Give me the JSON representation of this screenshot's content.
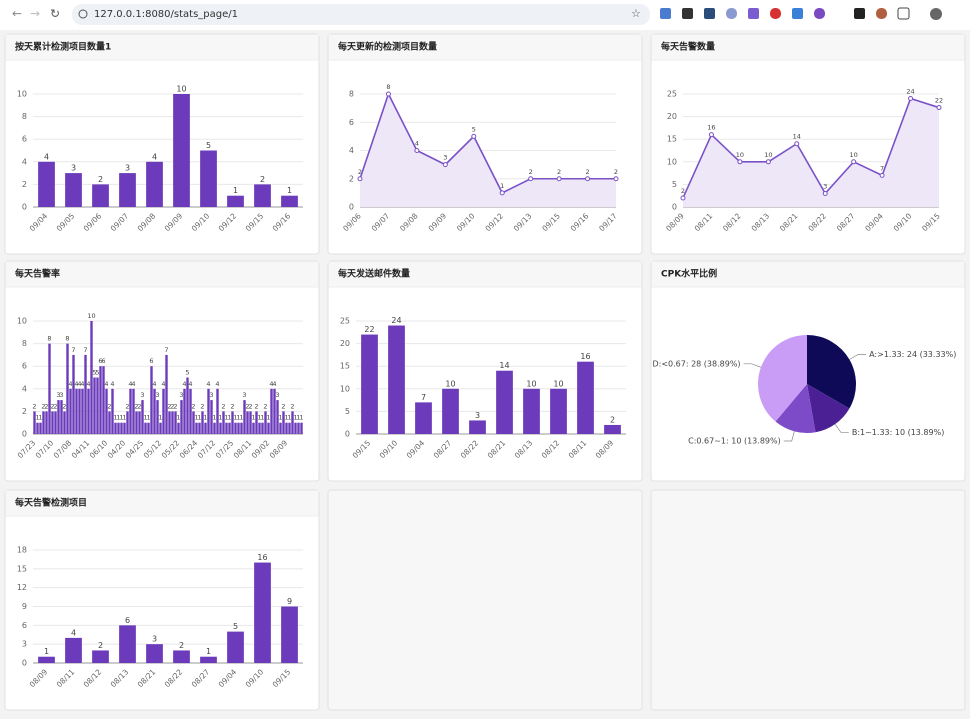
{
  "browser": {
    "url": "127.0.0.1:8080/stats_page/1"
  },
  "chart_data": [
    {
      "type": "bar",
      "title": "按天累计检测项目数量1",
      "color": "#6b3bbb",
      "categories": [
        "09/04",
        "09/05",
        "09/06",
        "09/07",
        "09/08",
        "09/09",
        "09/10",
        "09/12",
        "09/15",
        "09/16"
      ],
      "values": [
        4,
        3,
        2,
        3,
        4,
        10,
        5,
        1,
        2,
        1
      ],
      "ylim": [
        0,
        10
      ],
      "yticks": [
        0,
        2,
        4,
        6,
        8,
        10
      ],
      "grid": true
    },
    {
      "type": "line",
      "title": "每天更新的检测项目数量",
      "color": "#7a52c6",
      "area_color": "#ede7f8",
      "categories": [
        "09/06",
        "09/07",
        "09/08",
        "09/09",
        "09/10",
        "09/12",
        "09/13",
        "09/15",
        "09/16",
        "09/17"
      ],
      "values": [
        2,
        8,
        4,
        3,
        5,
        1,
        2,
        2,
        2,
        2
      ],
      "ylim": [
        0,
        8
      ],
      "yticks": [
        0,
        2,
        4,
        6,
        8
      ],
      "grid": true
    },
    {
      "type": "line",
      "title": "每天告警数量",
      "color": "#7a52c6",
      "area_color": "#ede7f8",
      "categories": [
        "08/09",
        "08/11",
        "08/12",
        "08/13",
        "08/21",
        "08/22",
        "08/27",
        "09/04",
        "09/10",
        "09/15"
      ],
      "values": [
        2,
        16,
        10,
        10,
        14,
        3,
        10,
        7,
        24,
        22
      ],
      "ylim": [
        0,
        25
      ],
      "yticks": [
        0,
        5,
        10,
        15,
        20,
        25
      ],
      "grid": true
    },
    {
      "type": "bar",
      "title": "每天告警率",
      "color": "#6b3bbb",
      "small": true,
      "categories": [
        "07/23",
        null,
        null,
        null,
        null,
        null,
        "07/10",
        null,
        null,
        null,
        null,
        null,
        "07/08",
        null,
        null,
        null,
        null,
        null,
        "04/11",
        null,
        null,
        null,
        null,
        null,
        "06/10",
        null,
        null,
        null,
        null,
        null,
        "04/20",
        null,
        null,
        null,
        null,
        null,
        "04/25",
        null,
        null,
        null,
        null,
        null,
        "05/12",
        null,
        null,
        null,
        null,
        null,
        "05/22",
        null,
        null,
        null,
        null,
        null,
        "06/24",
        null,
        null,
        null,
        null,
        null,
        "07/12",
        null,
        null,
        null,
        null,
        null,
        "07/25",
        null,
        null,
        null,
        null,
        null,
        "08/11",
        null,
        null,
        null,
        null,
        null,
        "09/02",
        null,
        null,
        null,
        null,
        null,
        "08/09",
        null,
        null,
        null,
        null,
        null
      ],
      "values": [
        2,
        1,
        1,
        2,
        2,
        8,
        2,
        2,
        3,
        3,
        2,
        8,
        4,
        7,
        4,
        4,
        4,
        7,
        4,
        10,
        5,
        5,
        6,
        6,
        4,
        2,
        4,
        1,
        1,
        1,
        1,
        2,
        4,
        4,
        2,
        2,
        3,
        1,
        1,
        6,
        4,
        3,
        1,
        4,
        7,
        2,
        2,
        2,
        1,
        3,
        4,
        5,
        4,
        2,
        1,
        1,
        2,
        1,
        4,
        3,
        1,
        4,
        1,
        2,
        1,
        1,
        2,
        1,
        1,
        1,
        3,
        2,
        2,
        1,
        2,
        1,
        1,
        2,
        1,
        4,
        4,
        3,
        1,
        2,
        1,
        1,
        2,
        1,
        1,
        1
      ],
      "ylim": [
        0,
        10
      ],
      "yticks": [
        0,
        2,
        4,
        6,
        8,
        10
      ],
      "grid": true
    },
    {
      "type": "bar",
      "title": "每天发送邮件数量",
      "color": "#6b3bbb",
      "categories": [
        "09/15",
        "09/10",
        "09/04",
        "08/27",
        "08/22",
        "08/21",
        "08/13",
        "08/12",
        "08/11",
        "08/09"
      ],
      "values": [
        22,
        24,
        7,
        10,
        3,
        14,
        10,
        10,
        16,
        2
      ],
      "ylim": [
        0,
        25
      ],
      "yticks": [
        0,
        5,
        10,
        15,
        20,
        25
      ],
      "grid": true
    },
    {
      "type": "pie",
      "title": "CPK水平比例",
      "categories": [
        "A:>1.33",
        "B:1~1.33",
        "C:0.67~1",
        "D:<0.67"
      ],
      "values": [
        24,
        10,
        10,
        28
      ],
      "value_labels": [
        "A:>1.33: 24 (33.33%)",
        "B:1~1.33: 10 (13.89%)",
        "C:0.67~1: 10 (13.89%)",
        "D:<0.67: 28 (38.89%)"
      ],
      "colors": [
        "#0e0a58",
        "#4a2094",
        "#7d4bc8",
        "#c99cf6"
      ]
    },
    {
      "type": "bar",
      "title": "每天告警检测项目",
      "color": "#6b3bbb",
      "categories": [
        "08/09",
        "08/11",
        "08/12",
        "08/13",
        "08/21",
        "08/22",
        "08/27",
        "09/04",
        "09/10",
        "09/15"
      ],
      "values": [
        1,
        4,
        2,
        6,
        3,
        2,
        1,
        5,
        16,
        9
      ],
      "ylim": [
        0,
        18
      ],
      "yticks": [
        0,
        3,
        6,
        9,
        12,
        15,
        18
      ],
      "grid": true
    }
  ]
}
